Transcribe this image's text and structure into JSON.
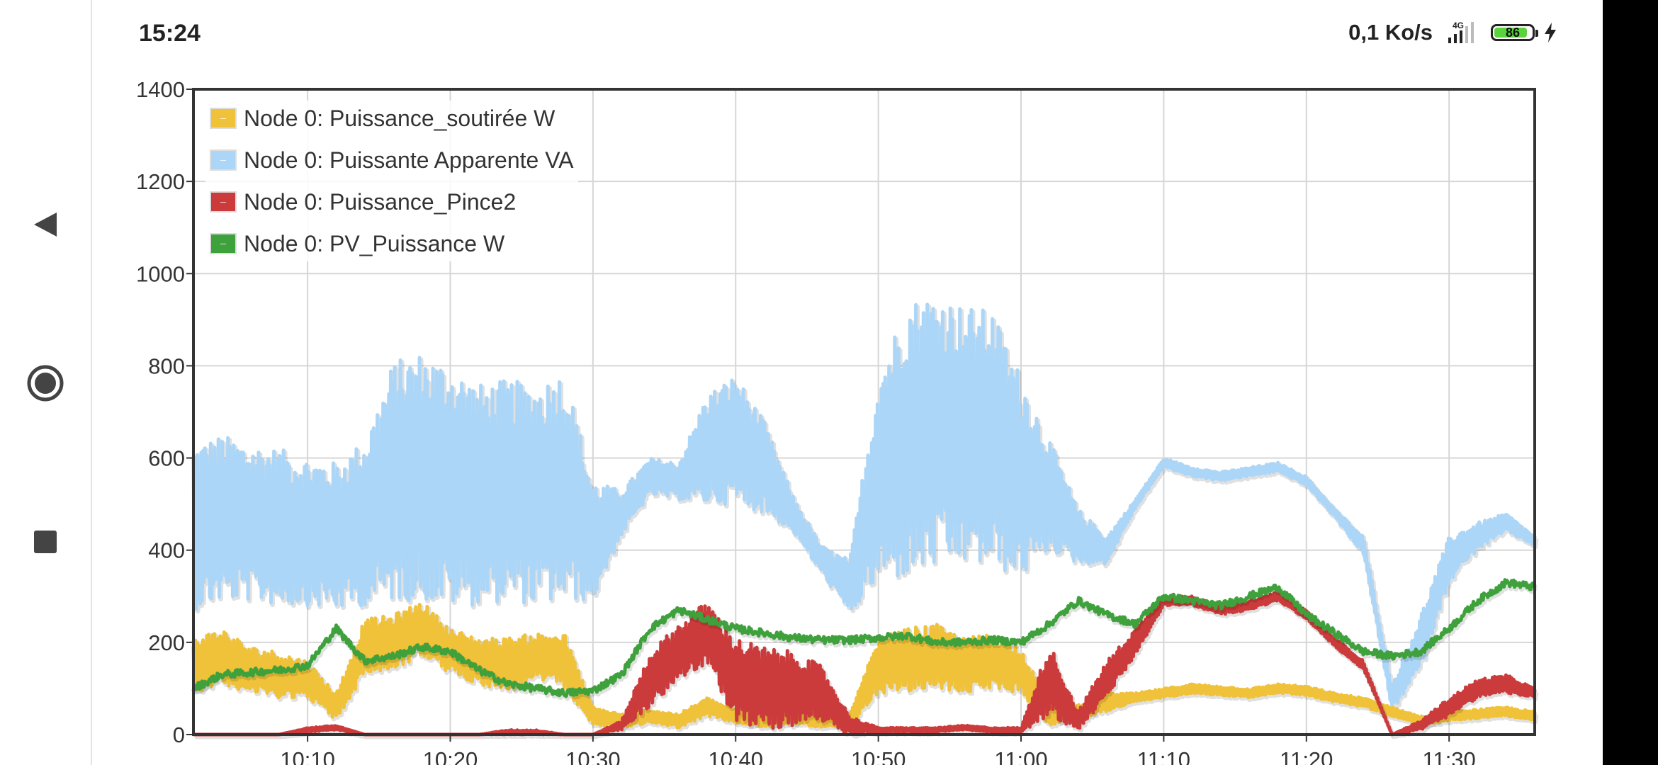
{
  "status_bar": {
    "time": "15:24",
    "data_rate": "0,1 Ko/s",
    "network": "4G",
    "battery": "86",
    "icons": [
      "signal-icon",
      "battery-icon",
      "charging-icon"
    ]
  },
  "nav_bar": {
    "buttons": [
      "back-icon",
      "home-icon",
      "recents-icon"
    ]
  },
  "chart_data": {
    "type": "line",
    "title": "",
    "xlabel": "",
    "ylabel": "",
    "ylim": [
      0,
      1400
    ],
    "xlim": [
      "10:02",
      "11:36"
    ],
    "yticks": [
      "0",
      "200",
      "400",
      "600",
      "800",
      "1000",
      "1200",
      "1400"
    ],
    "xticks": [
      "10:10",
      "10:20",
      "10:30",
      "10:40",
      "10:50",
      "11:00",
      "11:10",
      "11:20",
      "11:30"
    ],
    "grid": true,
    "legend_position": "top-left",
    "series": [
      {
        "name": "Node 0: Puissance_soutirée W",
        "color": "#f0c23a",
        "x": [
          "10:02",
          "10:04",
          "10:06",
          "10:08",
          "10:10",
          "10:12",
          "10:14",
          "10:16",
          "10:18",
          "10:20",
          "10:22",
          "10:24",
          "10:26",
          "10:28",
          "10:30",
          "10:32",
          "10:34",
          "10:36",
          "10:38",
          "10:40",
          "10:42",
          "10:44",
          "10:46",
          "10:48",
          "10:50",
          "10:52",
          "10:54",
          "10:56",
          "10:58",
          "11:00",
          "11:02",
          "11:04",
          "11:06",
          "11:08",
          "11:10",
          "11:12",
          "11:14",
          "11:16",
          "11:18",
          "11:20",
          "11:22",
          "11:24",
          "11:26",
          "11:28",
          "11:30",
          "11:32",
          "11:34",
          "11:36"
        ],
        "values": [
          150,
          170,
          140,
          130,
          120,
          60,
          190,
          200,
          230,
          180,
          160,
          150,
          170,
          160,
          40,
          30,
          40,
          30,
          60,
          40,
          30,
          40,
          30,
          30,
          150,
          160,
          170,
          150,
          160,
          140,
          40,
          50,
          70,
          80,
          90,
          100,
          95,
          90,
          100,
          95,
          80,
          70,
          50,
          30,
          40,
          45,
          50,
          40
        ],
        "jitter": [
          60,
          60,
          50,
          50,
          40,
          30,
          60,
          60,
          60,
          50,
          50,
          60,
          50,
          60,
          20,
          15,
          15,
          15,
          20,
          15,
          15,
          15,
          15,
          15,
          60,
          70,
          70,
          60,
          60,
          50,
          20,
          15,
          20,
          10,
          10,
          10,
          10,
          10,
          10,
          10,
          10,
          10,
          10,
          10,
          10,
          10,
          10,
          10
        ]
      },
      {
        "name": "Node 0: Puissante Apparente VA",
        "color": "#acd6f7",
        "x": [
          "10:02",
          "10:04",
          "10:06",
          "10:08",
          "10:10",
          "10:12",
          "10:14",
          "10:16",
          "10:18",
          "10:20",
          "10:22",
          "10:24",
          "10:26",
          "10:28",
          "10:30",
          "10:32",
          "10:34",
          "10:36",
          "10:38",
          "10:40",
          "10:42",
          "10:44",
          "10:46",
          "10:48",
          "10:50",
          "10:52",
          "10:54",
          "10:56",
          "10:58",
          "11:00",
          "11:02",
          "11:04",
          "11:06",
          "11:08",
          "11:10",
          "11:12",
          "11:14",
          "11:16",
          "11:18",
          "11:20",
          "11:22",
          "11:24",
          "11:26",
          "11:28",
          "11:30",
          "11:32",
          "11:34",
          "11:36"
        ],
        "values": [
          450,
          470,
          460,
          450,
          440,
          430,
          460,
          550,
          560,
          540,
          520,
          530,
          520,
          540,
          420,
          480,
          560,
          550,
          620,
          640,
          580,
          480,
          380,
          320,
          560,
          640,
          660,
          650,
          640,
          560,
          520,
          430,
          400,
          500,
          590,
          570,
          560,
          570,
          580,
          550,
          480,
          410,
          80,
          200,
          380,
          430,
          460,
          420
        ],
        "jitter": [
          180,
          180,
          170,
          170,
          160,
          160,
          180,
          260,
          270,
          260,
          240,
          240,
          240,
          250,
          130,
          50,
          40,
          40,
          120,
          140,
          100,
          40,
          30,
          60,
          230,
          300,
          300,
          280,
          280,
          220,
          120,
          60,
          30,
          10,
          10,
          10,
          10,
          10,
          10,
          10,
          10,
          20,
          30,
          60,
          50,
          30,
          20,
          10
        ]
      },
      {
        "name": "Node 0: Puissance_Pince2",
        "color": "#cc3b3b",
        "x": [
          "10:02",
          "10:04",
          "10:06",
          "10:08",
          "10:10",
          "10:12",
          "10:14",
          "10:16",
          "10:18",
          "10:20",
          "10:22",
          "10:24",
          "10:26",
          "10:28",
          "10:30",
          "10:32",
          "10:34",
          "10:36",
          "10:38",
          "10:40",
          "10:42",
          "10:44",
          "10:46",
          "10:48",
          "10:50",
          "10:52",
          "10:54",
          "10:56",
          "10:58",
          "11:00",
          "11:02",
          "11:04",
          "11:06",
          "11:08",
          "11:10",
          "11:12",
          "11:14",
          "11:16",
          "11:18",
          "11:20",
          "11:22",
          "11:24",
          "11:26",
          "11:28",
          "11:30",
          "11:32",
          "11:34",
          "11:36"
        ],
        "values": [
          0,
          0,
          0,
          0,
          10,
          15,
          0,
          0,
          0,
          0,
          0,
          5,
          5,
          0,
          0,
          20,
          120,
          180,
          220,
          120,
          100,
          100,
          90,
          20,
          10,
          10,
          10,
          15,
          10,
          10,
          120,
          30,
          120,
          200,
          290,
          290,
          270,
          280,
          300,
          260,
          200,
          150,
          0,
          20,
          60,
          100,
          110,
          90
        ],
        "jitter": [
          0,
          0,
          0,
          0,
          5,
          5,
          0,
          0,
          0,
          0,
          0,
          5,
          5,
          0,
          0,
          10,
          60,
          60,
          70,
          90,
          90,
          80,
          60,
          20,
          5,
          5,
          5,
          5,
          5,
          5,
          80,
          20,
          40,
          30,
          10,
          10,
          10,
          10,
          10,
          10,
          10,
          10,
          0,
          10,
          20,
          20,
          20,
          10
        ]
      },
      {
        "name": "Node 0: PV_Puissance W",
        "color": "#3ea13c",
        "x": [
          "10:02",
          "10:04",
          "10:06",
          "10:08",
          "10:10",
          "10:12",
          "10:14",
          "10:16",
          "10:18",
          "10:20",
          "10:22",
          "10:24",
          "10:26",
          "10:28",
          "10:30",
          "10:32",
          "10:34",
          "10:36",
          "10:38",
          "10:40",
          "10:42",
          "10:44",
          "10:46",
          "10:48",
          "10:50",
          "10:52",
          "10:54",
          "10:56",
          "10:58",
          "11:00",
          "11:02",
          "11:04",
          "11:06",
          "11:08",
          "11:10",
          "11:12",
          "11:14",
          "11:16",
          "11:18",
          "11:20",
          "11:22",
          "11:24",
          "11:26",
          "11:28",
          "11:30",
          "11:32",
          "11:34",
          "11:36"
        ],
        "values": [
          100,
          130,
          135,
          140,
          150,
          230,
          160,
          170,
          190,
          180,
          140,
          110,
          100,
          90,
          95,
          130,
          230,
          270,
          250,
          230,
          220,
          210,
          205,
          205,
          210,
          215,
          200,
          200,
          205,
          200,
          240,
          290,
          260,
          240,
          300,
          290,
          280,
          300,
          320,
          260,
          220,
          180,
          170,
          180,
          230,
          290,
          330,
          320
        ],
        "jitter": [
          8,
          8,
          8,
          8,
          8,
          8,
          8,
          8,
          8,
          8,
          8,
          8,
          8,
          8,
          8,
          8,
          8,
          8,
          8,
          8,
          8,
          8,
          8,
          8,
          8,
          8,
          8,
          8,
          8,
          8,
          8,
          8,
          8,
          8,
          8,
          8,
          8,
          8,
          8,
          8,
          8,
          8,
          8,
          8,
          8,
          8,
          8,
          8
        ]
      }
    ]
  }
}
